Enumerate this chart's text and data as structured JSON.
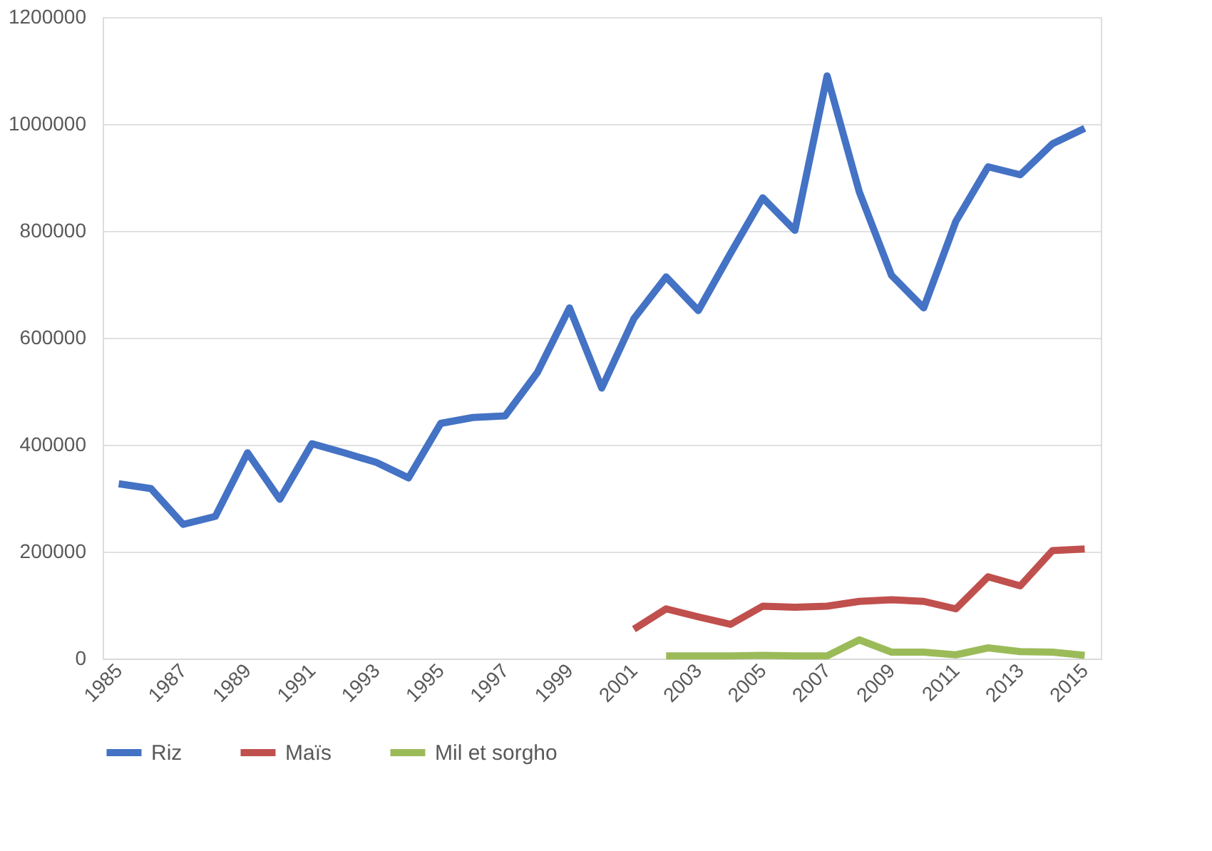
{
  "chart_data": {
    "type": "line",
    "categories": [
      "1985",
      null,
      "1987",
      null,
      "1989",
      null,
      "1991",
      null,
      "1993",
      null,
      "1995",
      null,
      "1997",
      null,
      "1999",
      null,
      "2001",
      null,
      "2003",
      null,
      "2005",
      null,
      "2007",
      null,
      "2009",
      null,
      "2011",
      null,
      "2013",
      null,
      "2015"
    ],
    "series": [
      {
        "name": "Riz",
        "color": "#4472c4",
        "values": [
          327000,
          318000,
          251000,
          266000,
          385000,
          298000,
          402000,
          385000,
          367000,
          338000,
          440000,
          451000,
          454000,
          535000,
          656000,
          506000,
          636000,
          714000,
          651000,
          758000,
          862000,
          801000,
          1090000,
          873000,
          717000,
          656000,
          818000,
          920000,
          905000,
          963000,
          992000
        ]
      },
      {
        "name": "Maïs",
        "color": "#c0504d",
        "values": [
          null,
          null,
          null,
          null,
          null,
          null,
          null,
          null,
          null,
          null,
          null,
          null,
          null,
          null,
          null,
          null,
          55000,
          93000,
          78000,
          64000,
          98000,
          96000,
          98000,
          107000,
          110000,
          107000,
          93000,
          153000,
          136000,
          202000,
          205000
        ]
      },
      {
        "name": "Mil et sorgho",
        "color": "#9bbb59",
        "values": [
          null,
          null,
          null,
          null,
          null,
          null,
          null,
          null,
          null,
          null,
          null,
          null,
          null,
          null,
          null,
          null,
          null,
          5000,
          5000,
          5000,
          6000,
          5000,
          5000,
          35000,
          12000,
          12000,
          7000,
          20000,
          13000,
          12000,
          6000
        ]
      }
    ],
    "ylim": [
      0,
      1200000
    ],
    "yticks": [
      0,
      200000,
      400000,
      600000,
      800000,
      1000000,
      1200000
    ],
    "grid": "y",
    "legend": "bottom",
    "marker": "none",
    "line_style": "solid"
  }
}
